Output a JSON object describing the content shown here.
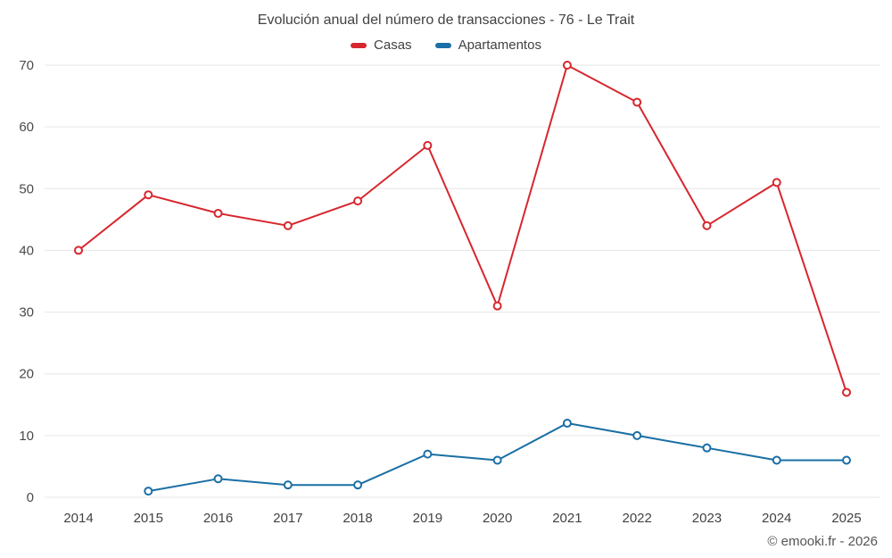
{
  "header": {
    "title": "Evolución anual del número de transacciones - 76 - Le Trait"
  },
  "legend": {
    "items": [
      {
        "label": "Casas",
        "color": "#d7272e"
      },
      {
        "label": "Apartamentos",
        "color": "#1a6fa5"
      }
    ]
  },
  "footer": {
    "credit": "© emooki.fr - 2026"
  },
  "chart_data": {
    "type": "line",
    "title": "Evolución anual del número de transacciones - 76 - Le Trait",
    "categories": [
      "2014",
      "2015",
      "2016",
      "2017",
      "2018",
      "2019",
      "2020",
      "2021",
      "2022",
      "2023",
      "2024",
      "2025"
    ],
    "series": [
      {
        "name": "Casas",
        "color": "#d7272e",
        "values": [
          40,
          49,
          46,
          44,
          48,
          57,
          31,
          70,
          64,
          44,
          51,
          17
        ]
      },
      {
        "name": "Apartamentos",
        "color": "#1a6fa5",
        "values": [
          null,
          1,
          3,
          2,
          2,
          7,
          6,
          12,
          10,
          8,
          6,
          6
        ]
      }
    ],
    "ylim": [
      0,
      70
    ],
    "ytick_step": 10,
    "yticks": [
      0,
      10,
      20,
      30,
      40,
      50,
      60,
      70
    ],
    "grid": "horizontal",
    "legend_position": "top",
    "xlabel": "",
    "ylabel": ""
  }
}
